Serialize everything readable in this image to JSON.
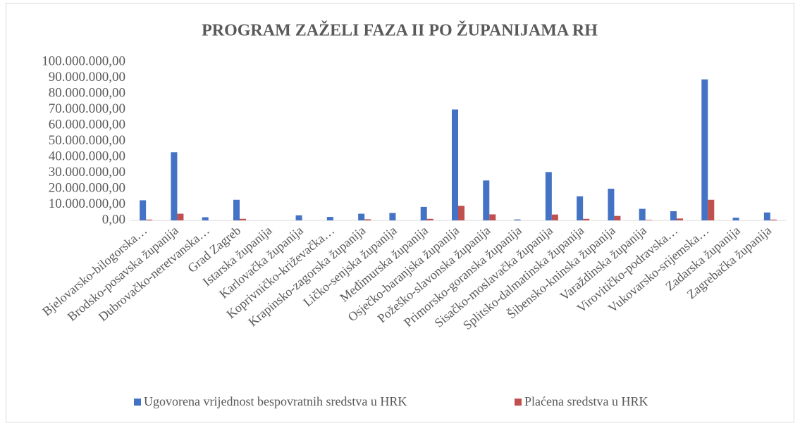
{
  "chart_data": {
    "type": "bar",
    "title": "PROGRAM ZAŽELI FAZA II PO ŽUPANIJAMA RH",
    "categories": [
      "Bjelovarsko-bilogorska…",
      "Brodsko-posavska županija",
      "Dubrovačko-neretvanska…",
      "Grad Zagreb",
      "Istarska županija",
      "Karlovačka županija",
      "Koprivničko-križevačka…",
      "Krapinsko-zagorska županija",
      "Ličko-senjska županija",
      "Međimurska županija",
      "Osječko-baranjska županija",
      "Požeško-slavonska županija",
      "Primorsko-goranska županija",
      "Sisačko-moslavačka županija",
      "Splitsko-dalmatinska županija",
      "Šibensko-kninska županija",
      "Varaždinska županija",
      "Virovitičko-podravska…",
      "Vukovarsko-srijemska…",
      "Zadarska županija",
      "Zagrebačka županija"
    ],
    "series": [
      {
        "name": "Ugovorena vrijednost bespovratnih sredstva u HRK",
        "color": "#4472c4",
        "values": [
          12700000,
          43000000,
          2000000,
          13000000,
          0,
          3200000,
          2200000,
          4200000,
          4700000,
          8500000,
          70000000,
          25200000,
          600000,
          30500000,
          15200000,
          20000000,
          7300000,
          5800000,
          89000000,
          1700000,
          5000000
        ]
      },
      {
        "name": "Plaćena sredstva u HRK",
        "color": "#c0504d",
        "values": [
          500000,
          4200000,
          0,
          1000000,
          0,
          0,
          0,
          700000,
          0,
          1000000,
          9200000,
          3800000,
          0,
          3700000,
          1000000,
          2800000,
          300000,
          1200000,
          13000000,
          0,
          500000
        ]
      }
    ],
    "ylim": [
      0,
      100000000
    ],
    "yticks": [
      {
        "value": 0,
        "label": "0,00"
      },
      {
        "value": 10000000,
        "label": "10.000.000,00"
      },
      {
        "value": 20000000,
        "label": "20.000.000,00"
      },
      {
        "value": 30000000,
        "label": "30.000.000,00"
      },
      {
        "value": 40000000,
        "label": "40.000.000,00"
      },
      {
        "value": 50000000,
        "label": "50.000.000,00"
      },
      {
        "value": 60000000,
        "label": "60.000.000,00"
      },
      {
        "value": 70000000,
        "label": "70.000.000,00"
      },
      {
        "value": 80000000,
        "label": "80.000.000,00"
      },
      {
        "value": 90000000,
        "label": "90.000.000,00"
      },
      {
        "value": 100000000,
        "label": "100.000.000,00"
      }
    ],
    "grid": false,
    "legend": "bottom"
  }
}
